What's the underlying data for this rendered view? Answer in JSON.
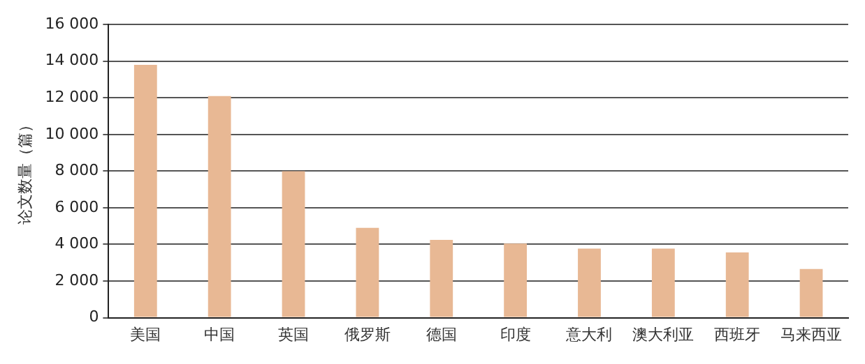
{
  "chart_data": {
    "type": "bar",
    "ylabel": "论文数量（篇）",
    "categories": [
      "美国",
      "中国",
      "英国",
      "俄罗斯",
      "德国",
      "印度",
      "意大利",
      "澳大利亚",
      "西班牙",
      "马来西亚"
    ],
    "values": [
      13800,
      12100,
      8000,
      4900,
      4250,
      4050,
      3770,
      3770,
      3560,
      2660
    ],
    "color": "#e8b894",
    "ylim": [
      0,
      16000
    ],
    "yticks": [
      {
        "value": 0,
        "label": "0"
      },
      {
        "value": 2000,
        "label": "2 000"
      },
      {
        "value": 4000,
        "label": "4 000"
      },
      {
        "value": 6000,
        "label": "6 000"
      },
      {
        "value": 8000,
        "label": "8 000"
      },
      {
        "value": 10000,
        "label": "10 000"
      },
      {
        "value": 12000,
        "label": "12 000"
      },
      {
        "value": 14000,
        "label": "14 000"
      },
      {
        "value": 16000,
        "label": "16 000"
      }
    ],
    "grid": "y",
    "legend": false
  }
}
